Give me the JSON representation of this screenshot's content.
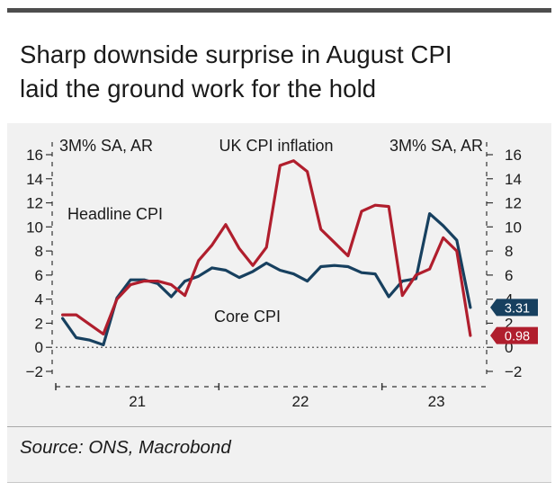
{
  "header": {
    "title_line1": "Sharp downside surprise in August CPI",
    "title_line2": "laid the ground work for the hold"
  },
  "footer": {
    "source": "Source: ONS, Macrobond"
  },
  "colors": {
    "headline": "#b01e2d",
    "core": "#17405f",
    "zero_line": "#555555",
    "text": "#1a1a1a"
  },
  "chart_data": {
    "type": "line",
    "title": "UK CPI inflation",
    "left_axis_label": "3M% SA, AR",
    "right_axis_label": "3M% SA, AR",
    "ylim": [
      -2,
      16
    ],
    "yticks": [
      -2,
      0,
      2,
      4,
      6,
      8,
      10,
      12,
      14,
      16
    ],
    "year_labels": [
      {
        "label": "21",
        "x": 5.5
      },
      {
        "label": "22",
        "x": 17.5
      },
      {
        "label": "23",
        "x": 27.5
      }
    ],
    "x_separators": [
      -0.5,
      11.5,
      23.5
    ],
    "xlim": [
      -0.5,
      31
    ],
    "zero_line": true,
    "series": [
      {
        "name": "Headline CPI",
        "color": "#b01e2d",
        "x": [
          0,
          1,
          2,
          3,
          4,
          5,
          6,
          7,
          8,
          9,
          10,
          11,
          12,
          13,
          14,
          15,
          16,
          17,
          18,
          19,
          20,
          21,
          22,
          23,
          24,
          25,
          26,
          27,
          28,
          29,
          30
        ],
        "values": [
          2.7,
          2.7,
          1.9,
          1.1,
          4.0,
          5.2,
          5.5,
          5.5,
          5.2,
          4.3,
          7.2,
          8.5,
          10.2,
          8.2,
          6.8,
          8.3,
          15.1,
          15.5,
          14.6,
          9.8,
          8.7,
          7.6,
          11.3,
          11.8,
          11.7,
          4.3,
          6.0,
          6.5,
          9.1,
          8.0,
          0.98
        ],
        "end_label": "0.98"
      },
      {
        "name": "Core CPI",
        "color": "#17405f",
        "x": [
          0,
          1,
          2,
          3,
          4,
          5,
          6,
          7,
          8,
          9,
          10,
          11,
          12,
          13,
          14,
          15,
          16,
          17,
          18,
          19,
          20,
          21,
          22,
          23,
          24,
          25,
          26,
          27,
          28,
          29,
          30
        ],
        "values": [
          2.4,
          0.8,
          0.6,
          0.2,
          4.1,
          5.6,
          5.6,
          5.3,
          4.2,
          5.5,
          5.9,
          6.6,
          6.4,
          5.8,
          6.3,
          7.0,
          6.4,
          6.1,
          5.5,
          6.7,
          6.8,
          6.7,
          6.2,
          6.1,
          4.2,
          5.5,
          5.7,
          11.1,
          10.1,
          8.9,
          3.31
        ],
        "end_label": "3.31"
      }
    ],
    "annotations": [
      {
        "text": "Headline CPI",
        "series": "Headline CPI"
      },
      {
        "text": "Core CPI",
        "series": "Core CPI"
      }
    ]
  }
}
